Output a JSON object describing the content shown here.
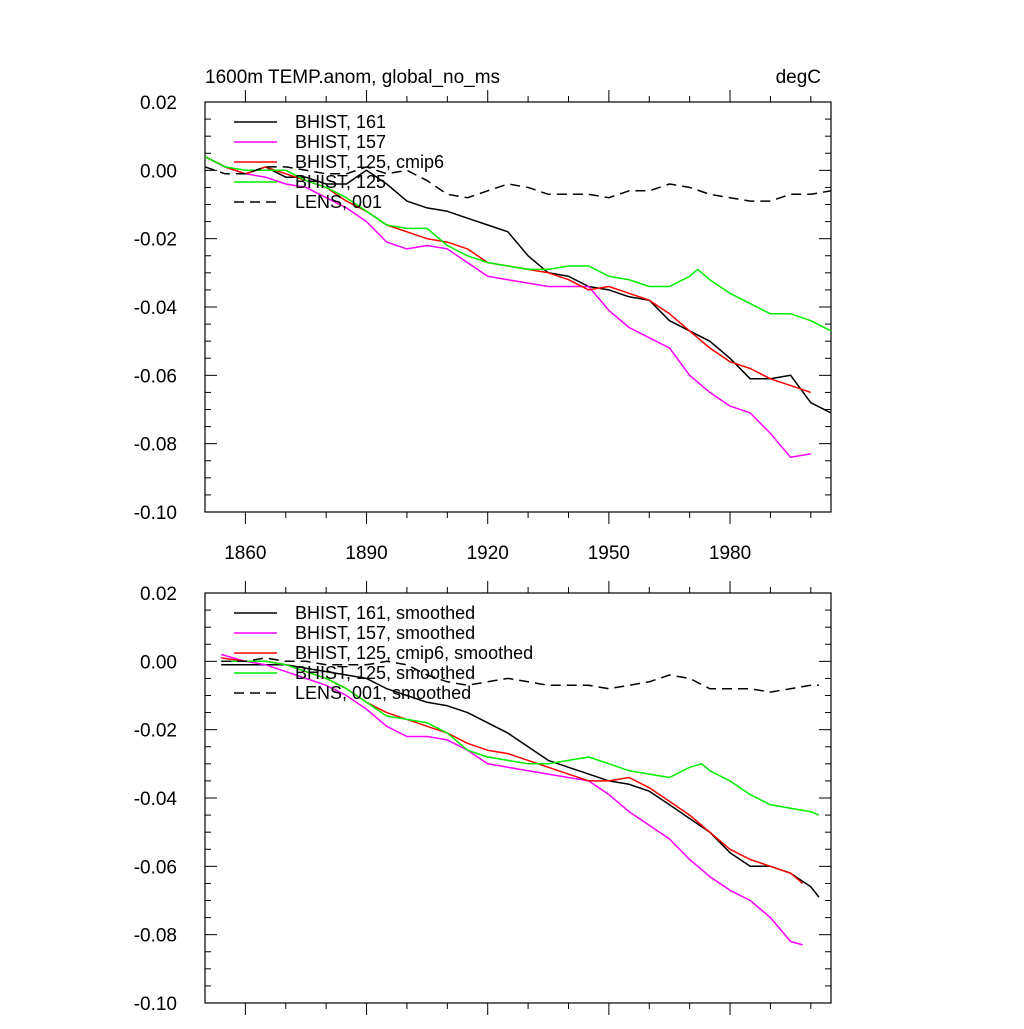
{
  "chart_data": [
    {
      "type": "line",
      "title": "1600m TEMP.anom, global_no_ms",
      "units": "degC",
      "xlabel": "",
      "ylabel": "",
      "xlim": [
        1850,
        2005
      ],
      "ylim": [
        -0.1,
        0.02
      ],
      "xticks": [
        1860,
        1890,
        1920,
        1950,
        1980
      ],
      "xtick_labels": [
        "1860",
        "1890",
        "1920",
        "1950",
        "1980"
      ],
      "yticks": [
        0.02,
        0.0,
        -0.02,
        -0.04,
        -0.06,
        -0.08,
        -0.1
      ],
      "ytick_labels": [
        "0.02",
        "0.00",
        "-0.02",
        "-0.04",
        "-0.06",
        "-0.08",
        "-0.10"
      ],
      "legend_position": "top-left",
      "grid": false,
      "series": [
        {
          "name": "BHIST, 161",
          "color": "#000000",
          "dash": "solid",
          "x": [
            1850,
            1855,
            1860,
            1865,
            1870,
            1875,
            1880,
            1885,
            1890,
            1895,
            1900,
            1905,
            1910,
            1915,
            1920,
            1925,
            1930,
            1935,
            1940,
            1945,
            1950,
            1955,
            1960,
            1965,
            1970,
            1975,
            1980,
            1985,
            1990,
            1995,
            2000,
            2005
          ],
          "y": [
            0.004,
            0.001,
            -0.001,
            0.001,
            -0.002,
            -0.002,
            -0.004,
            -0.004,
            0.0,
            -0.004,
            -0.009,
            -0.011,
            -0.012,
            -0.014,
            -0.016,
            -0.018,
            -0.025,
            -0.03,
            -0.031,
            -0.034,
            -0.035,
            -0.037,
            -0.038,
            -0.044,
            -0.047,
            -0.05,
            -0.055,
            -0.061,
            -0.061,
            -0.06,
            -0.068,
            -0.071
          ]
        },
        {
          "name": "BHIST, 157",
          "color": "#ff00ff",
          "dash": "solid",
          "x": [
            1850,
            1855,
            1860,
            1865,
            1870,
            1875,
            1880,
            1885,
            1890,
            1895,
            1900,
            1905,
            1910,
            1915,
            1920,
            1925,
            1930,
            1935,
            1940,
            1945,
            1950,
            1955,
            1960,
            1965,
            1970,
            1975,
            1980,
            1985,
            1990,
            1995,
            2000
          ],
          "y": [
            0.004,
            0.001,
            -0.001,
            -0.002,
            -0.004,
            -0.005,
            -0.008,
            -0.011,
            -0.015,
            -0.021,
            -0.023,
            -0.022,
            -0.023,
            -0.027,
            -0.031,
            -0.032,
            -0.033,
            -0.034,
            -0.034,
            -0.034,
            -0.041,
            -0.046,
            -0.049,
            -0.052,
            -0.06,
            -0.065,
            -0.069,
            -0.071,
            -0.077,
            -0.084,
            -0.083
          ]
        },
        {
          "name": "BHIST, 125, cmip6",
          "color": "#ff0000",
          "dash": "solid",
          "x": [
            1850,
            1855,
            1860,
            1865,
            1870,
            1875,
            1880,
            1885,
            1890,
            1895,
            1900,
            1905,
            1910,
            1915,
            1920,
            1925,
            1930,
            1935,
            1940,
            1945,
            1950,
            1955,
            1960,
            1965,
            1970,
            1975,
            1980,
            1985,
            1990,
            1995,
            2000
          ],
          "y": [
            0.004,
            0.001,
            -0.001,
            0.001,
            -0.001,
            -0.003,
            -0.005,
            -0.009,
            -0.012,
            -0.016,
            -0.018,
            -0.02,
            -0.021,
            -0.023,
            -0.027,
            -0.028,
            -0.029,
            -0.03,
            -0.032,
            -0.035,
            -0.034,
            -0.036,
            -0.038,
            -0.042,
            -0.047,
            -0.052,
            -0.056,
            -0.058,
            -0.061,
            -0.063,
            -0.065
          ]
        },
        {
          "name": "BHIST, 125",
          "color": "#00ee00",
          "dash": "solid",
          "x": [
            1850,
            1855,
            1860,
            1865,
            1870,
            1875,
            1880,
            1885,
            1890,
            1895,
            1900,
            1905,
            1910,
            1915,
            1920,
            1925,
            1930,
            1935,
            1940,
            1945,
            1950,
            1955,
            1960,
            1965,
            1970,
            1972,
            1975,
            1980,
            1985,
            1990,
            1995,
            2000,
            2005
          ],
          "y": [
            0.004,
            0.001,
            0.0,
            0.0,
            0.0,
            -0.003,
            -0.005,
            -0.008,
            -0.012,
            -0.016,
            -0.017,
            -0.017,
            -0.022,
            -0.025,
            -0.027,
            -0.028,
            -0.029,
            -0.029,
            -0.028,
            -0.028,
            -0.031,
            -0.032,
            -0.034,
            -0.034,
            -0.031,
            -0.029,
            -0.032,
            -0.036,
            -0.039,
            -0.042,
            -0.042,
            -0.044,
            -0.047
          ]
        },
        {
          "name": "LENS, 001",
          "color": "#000000",
          "dash": "dashed",
          "x": [
            1850,
            1855,
            1860,
            1865,
            1870,
            1875,
            1880,
            1885,
            1890,
            1895,
            1900,
            1905,
            1910,
            1915,
            1920,
            1925,
            1930,
            1935,
            1940,
            1945,
            1950,
            1955,
            1960,
            1965,
            1970,
            1975,
            1980,
            1985,
            1990,
            1995,
            2000,
            2005
          ],
          "y": [
            0.001,
            -0.001,
            -0.001,
            0.001,
            0.001,
            0.0,
            -0.001,
            -0.001,
            0.001,
            -0.001,
            0.0,
            -0.003,
            -0.007,
            -0.008,
            -0.006,
            -0.004,
            -0.005,
            -0.007,
            -0.007,
            -0.007,
            -0.008,
            -0.006,
            -0.006,
            -0.004,
            -0.005,
            -0.007,
            -0.008,
            -0.009,
            -0.009,
            -0.007,
            -0.007,
            -0.006
          ]
        }
      ]
    },
    {
      "type": "line",
      "title": "",
      "xlabel": "",
      "ylabel": "",
      "xlim": [
        1850,
        2005
      ],
      "ylim": [
        -0.1,
        0.02
      ],
      "yticks": [
        0.02,
        0.0,
        -0.02,
        -0.04,
        -0.06,
        -0.08,
        -0.1
      ],
      "ytick_labels": [
        "0.02",
        "0.00",
        "-0.02",
        "-0.04",
        "-0.06",
        "-0.08",
        "-0.10"
      ],
      "legend_position": "top-left",
      "grid": false,
      "series": [
        {
          "name": "BHIST, 161, smoothed",
          "color": "#000000",
          "dash": "solid",
          "x": [
            1854,
            1860,
            1865,
            1870,
            1875,
            1880,
            1885,
            1890,
            1895,
            1900,
            1905,
            1910,
            1915,
            1920,
            1925,
            1930,
            1935,
            1940,
            1945,
            1950,
            1955,
            1960,
            1965,
            1970,
            1975,
            1980,
            1985,
            1990,
            1995,
            2000,
            2002
          ],
          "y": [
            -0.001,
            -0.001,
            -0.001,
            -0.001,
            -0.002,
            -0.003,
            -0.004,
            -0.005,
            -0.008,
            -0.01,
            -0.012,
            -0.013,
            -0.015,
            -0.018,
            -0.021,
            -0.025,
            -0.029,
            -0.031,
            -0.033,
            -0.035,
            -0.036,
            -0.038,
            -0.042,
            -0.046,
            -0.05,
            -0.056,
            -0.06,
            -0.06,
            -0.062,
            -0.066,
            -0.069
          ]
        },
        {
          "name": "BHIST, 157, smoothed",
          "color": "#ff00ff",
          "dash": "solid",
          "x": [
            1854,
            1860,
            1865,
            1870,
            1875,
            1880,
            1885,
            1890,
            1895,
            1900,
            1905,
            1910,
            1915,
            1920,
            1925,
            1930,
            1935,
            1940,
            1945,
            1950,
            1955,
            1960,
            1965,
            1970,
            1975,
            1980,
            1985,
            1990,
            1995,
            1998
          ],
          "y": [
            0.002,
            0.0,
            -0.001,
            -0.003,
            -0.005,
            -0.007,
            -0.01,
            -0.014,
            -0.019,
            -0.022,
            -0.022,
            -0.023,
            -0.026,
            -0.03,
            -0.031,
            -0.032,
            -0.033,
            -0.034,
            -0.035,
            -0.039,
            -0.044,
            -0.048,
            -0.052,
            -0.058,
            -0.063,
            -0.067,
            -0.07,
            -0.075,
            -0.082,
            -0.083
          ]
        },
        {
          "name": "BHIST, 125, cmip6, smoothed",
          "color": "#ff0000",
          "dash": "solid",
          "x": [
            1854,
            1860,
            1865,
            1870,
            1875,
            1880,
            1885,
            1890,
            1895,
            1900,
            1905,
            1910,
            1915,
            1920,
            1925,
            1930,
            1935,
            1940,
            1945,
            1950,
            1955,
            1960,
            1965,
            1970,
            1975,
            1980,
            1985,
            1990,
            1995,
            1998
          ],
          "y": [
            0.001,
            0.0,
            0.0,
            -0.001,
            -0.003,
            -0.005,
            -0.008,
            -0.012,
            -0.015,
            -0.017,
            -0.019,
            -0.021,
            -0.024,
            -0.026,
            -0.027,
            -0.029,
            -0.031,
            -0.033,
            -0.035,
            -0.035,
            -0.034,
            -0.037,
            -0.041,
            -0.045,
            -0.05,
            -0.055,
            -0.058,
            -0.06,
            -0.062,
            -0.065
          ]
        },
        {
          "name": "BHIST, 125, smoothed",
          "color": "#00ee00",
          "dash": "solid",
          "x": [
            1854,
            1860,
            1865,
            1870,
            1875,
            1880,
            1885,
            1890,
            1895,
            1900,
            1905,
            1910,
            1915,
            1920,
            1925,
            1930,
            1935,
            1940,
            1945,
            1950,
            1955,
            1960,
            1965,
            1970,
            1973,
            1975,
            1980,
            1985,
            1990,
            1995,
            2000,
            2002
          ],
          "y": [
            0.0,
            0.0,
            0.0,
            -0.001,
            -0.003,
            -0.005,
            -0.008,
            -0.012,
            -0.016,
            -0.017,
            -0.018,
            -0.021,
            -0.026,
            -0.028,
            -0.029,
            -0.03,
            -0.03,
            -0.029,
            -0.028,
            -0.03,
            -0.032,
            -0.033,
            -0.034,
            -0.031,
            -0.03,
            -0.032,
            -0.035,
            -0.039,
            -0.042,
            -0.043,
            -0.044,
            -0.045
          ]
        },
        {
          "name": "LENS, 001, smoothed",
          "color": "#000000",
          "dash": "dashed",
          "x": [
            1854,
            1860,
            1865,
            1870,
            1875,
            1880,
            1885,
            1890,
            1895,
            1900,
            1905,
            1910,
            1915,
            1920,
            1925,
            1930,
            1935,
            1940,
            1945,
            1950,
            1955,
            1960,
            1965,
            1970,
            1975,
            1980,
            1985,
            1990,
            1995,
            2000,
            2002
          ],
          "y": [
            0.0,
            0.0,
            0.001,
            0.0,
            0.0,
            -0.001,
            -0.001,
            -0.001,
            0.0,
            -0.001,
            -0.004,
            -0.006,
            -0.007,
            -0.006,
            -0.005,
            -0.006,
            -0.007,
            -0.007,
            -0.007,
            -0.008,
            -0.007,
            -0.006,
            -0.004,
            -0.005,
            -0.008,
            -0.008,
            -0.008,
            -0.009,
            -0.008,
            -0.007,
            -0.007
          ]
        }
      ]
    }
  ]
}
